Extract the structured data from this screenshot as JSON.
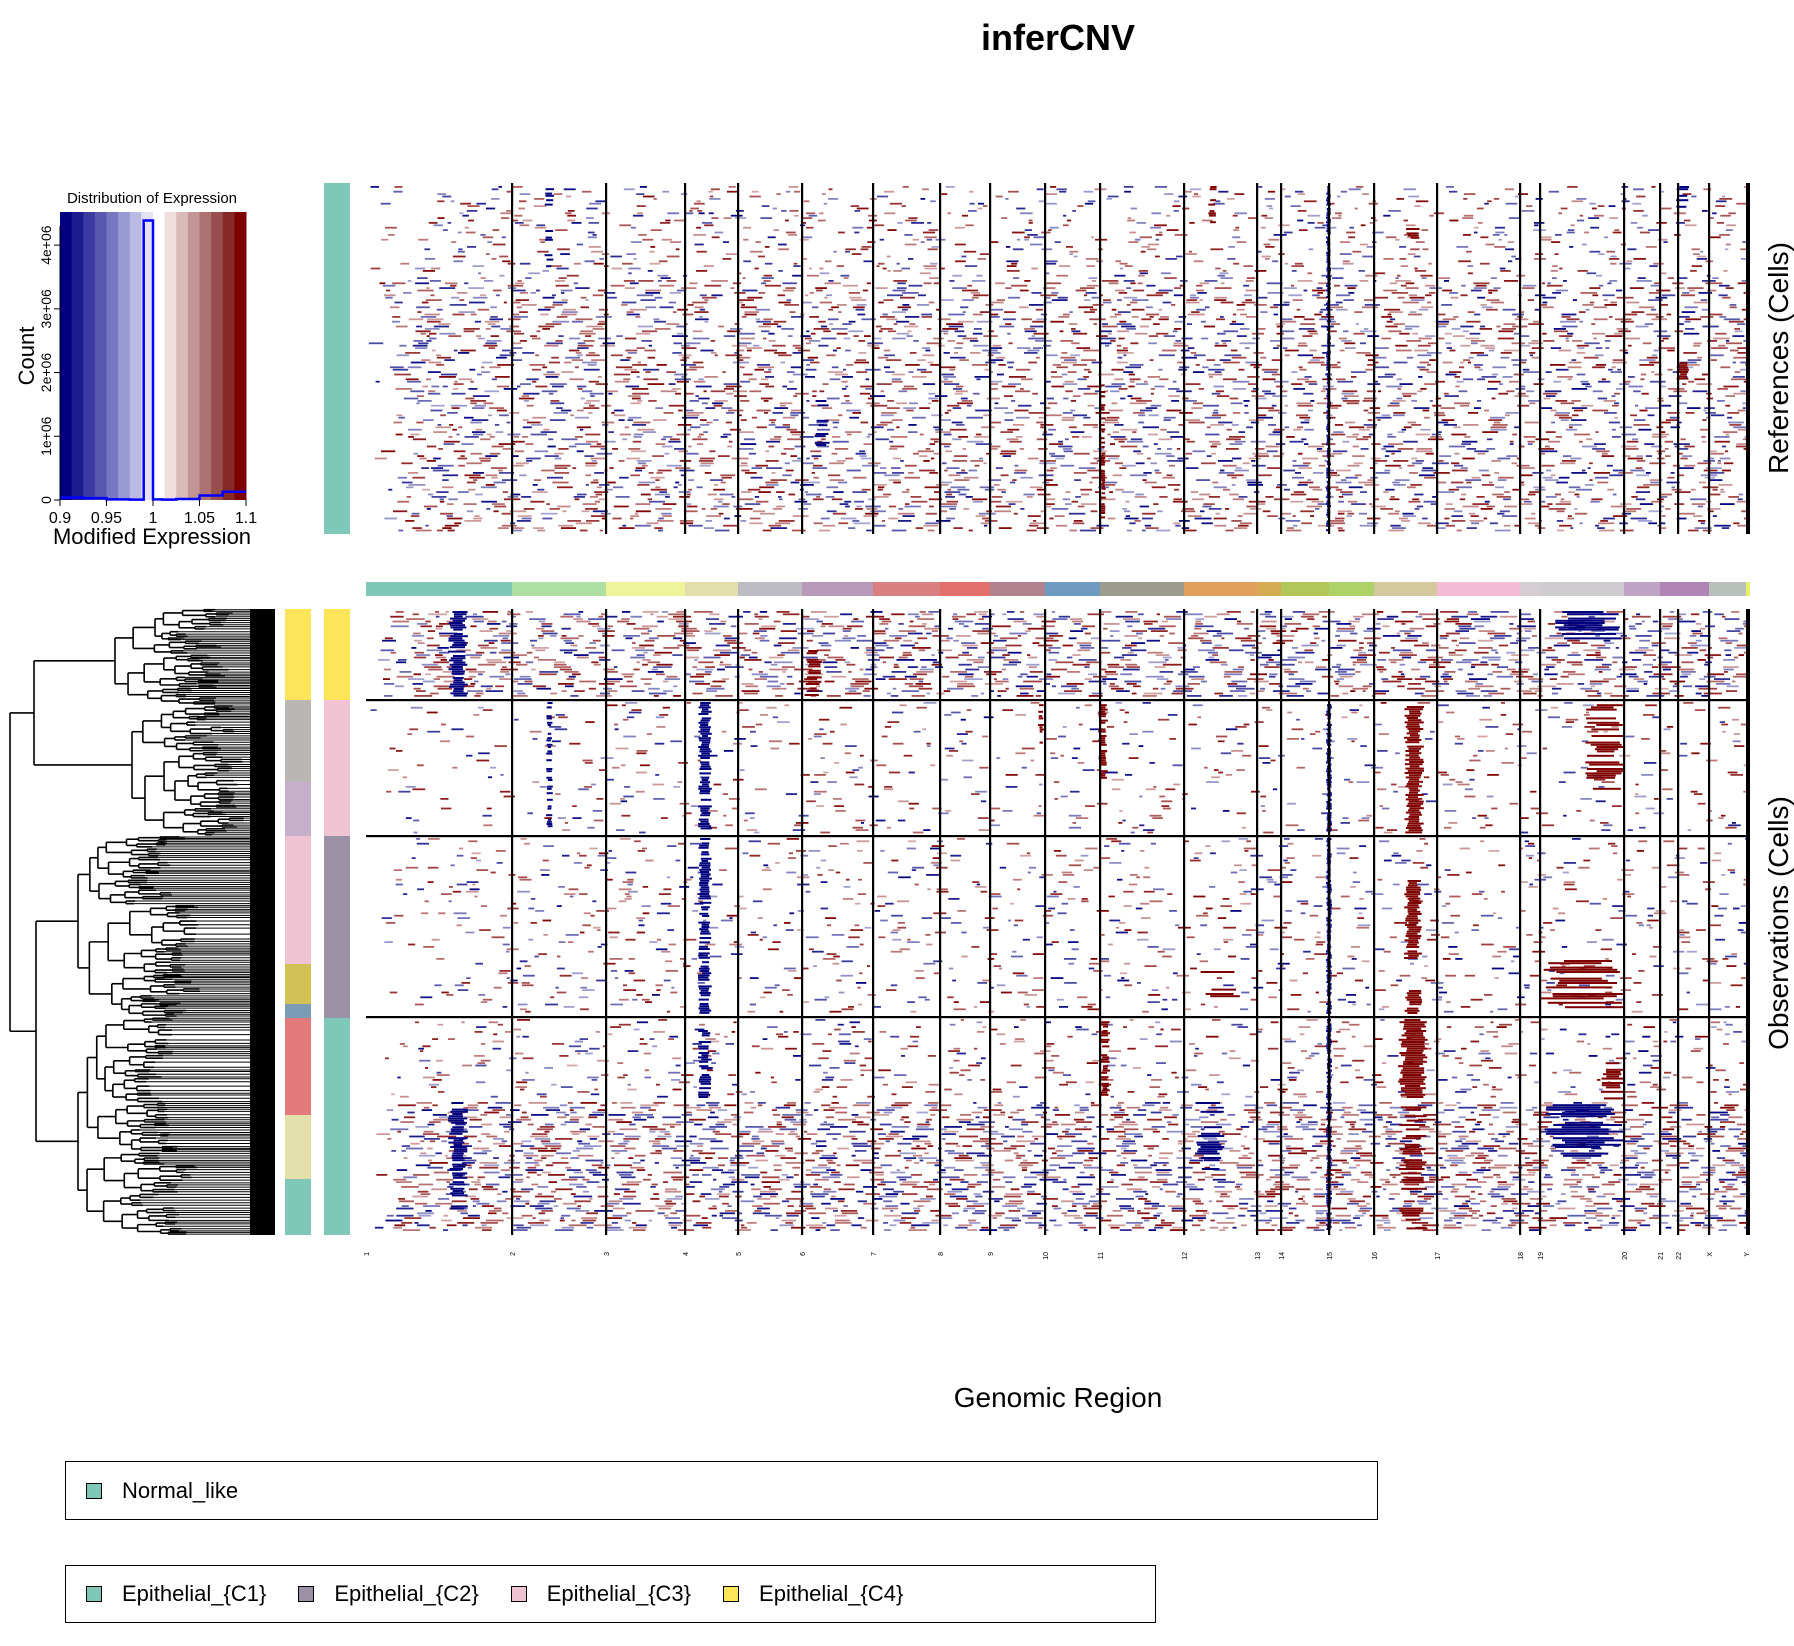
{
  "title": "inferCNV",
  "xlabel": "Genomic Region",
  "ref_label": "References (Cells)",
  "obs_label": "Observations (Cells)",
  "colors": {
    "gain": "#7f0000",
    "loss": "#00007f",
    "background": "#ffffff",
    "normal_like": "#7fc8b8",
    "c1": "#7fc8b8",
    "c2": "#9a92a4",
    "c3": "#efc3d2",
    "c4": "#fde55a"
  },
  "histogram": {
    "title": "Distribution of Expression",
    "xlabel": "Modified Expression",
    "ylabel": "Count",
    "xticks": [
      "0.9",
      "0.95",
      "1",
      "1.05",
      "1.1"
    ],
    "yticks": [
      "0",
      "1e+06",
      "2e+06",
      "3e+06",
      "4e+06"
    ],
    "palette": [
      "#00007f",
      "#1c1c90",
      "#3a3aa0",
      "#5858b0",
      "#7777c1",
      "#9898d2",
      "#babae2",
      "#e3e3f3",
      "#ffffff",
      "#f0dede",
      "#dbbaba",
      "#c49595",
      "#ad7272",
      "#964e4e",
      "#852929",
      "#7f0000"
    ]
  },
  "chromosomes": [
    "1",
    "2",
    "3",
    "4",
    "5",
    "6",
    "7",
    "8",
    "9",
    "10",
    "11",
    "12",
    "13",
    "14",
    "15",
    "16",
    "17",
    "18",
    "19",
    "20",
    "21",
    "22",
    "X",
    "Y"
  ],
  "legend_reference": [
    {
      "label": "Normal_like",
      "color": "#7fc8b8"
    }
  ],
  "legend_observation": [
    {
      "label": "Epithelial_{C1}",
      "color": "#7fc8b8"
    },
    {
      "label": "Epithelial_{C2}",
      "color": "#9a92a4"
    },
    {
      "label": "Epithelial_{C3}",
      "color": "#efc3d2"
    },
    {
      "label": "Epithelial_{C4}",
      "color": "#fde55a"
    }
  ],
  "chart_data": {
    "type": "heatmap",
    "title": "inferCNV",
    "xlabel": "Genomic Region",
    "x_categories": [
      "1",
      "2",
      "3",
      "4",
      "5",
      "6",
      "7",
      "8",
      "9",
      "10",
      "11",
      "12",
      "13",
      "14",
      "15",
      "16",
      "17",
      "18",
      "19",
      "20",
      "21",
      "22",
      "X",
      "Y"
    ],
    "value_range": [
      0.9,
      1.1
    ],
    "panels": [
      "References (Cells)",
      "Observations (Cells)"
    ],
    "reference_groups": [
      "Normal_like"
    ],
    "observation_groups": [
      "Epithelial_{C4}",
      "Epithelial_{C3}",
      "Epithelial_{C2}",
      "Epithelial_{C1}"
    ],
    "histogram": {
      "type": "bar",
      "title": "Distribution of Expression",
      "xlabel": "Modified Expression",
      "ylabel": "Count",
      "xlim": [
        0.9,
        1.1
      ],
      "ylim": [
        0,
        4300000
      ],
      "bins": [
        0.9,
        0.925,
        0.95,
        0.975,
        0.99,
        1.0,
        1.01,
        1.025,
        1.05,
        1.075
      ],
      "counts": [
        40000,
        30000,
        10000,
        5000,
        4450000,
        10000,
        5000,
        15000,
        70000,
        130000
      ]
    }
  }
}
